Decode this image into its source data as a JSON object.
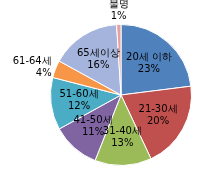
{
  "chart_data": {
    "type": "pie",
    "categories": [
      "20세 이하",
      "21-30세",
      "31-40세",
      "41-50세",
      "51-60세",
      "61-64세",
      "65세이상",
      "불명"
    ],
    "values": [
      23,
      20,
      13,
      11,
      12,
      4,
      16,
      1
    ],
    "value_labels": [
      "23%",
      "20%",
      "13%",
      "11%",
      "12%",
      "4%",
      "16%",
      "1%"
    ],
    "colors": [
      "#4f81bd",
      "#c0504d",
      "#9bbb59",
      "#8064a2",
      "#4bacc6",
      "#f79646",
      "#a5b4dc",
      "#e6a0a0"
    ],
    "data_labels": true
  }
}
